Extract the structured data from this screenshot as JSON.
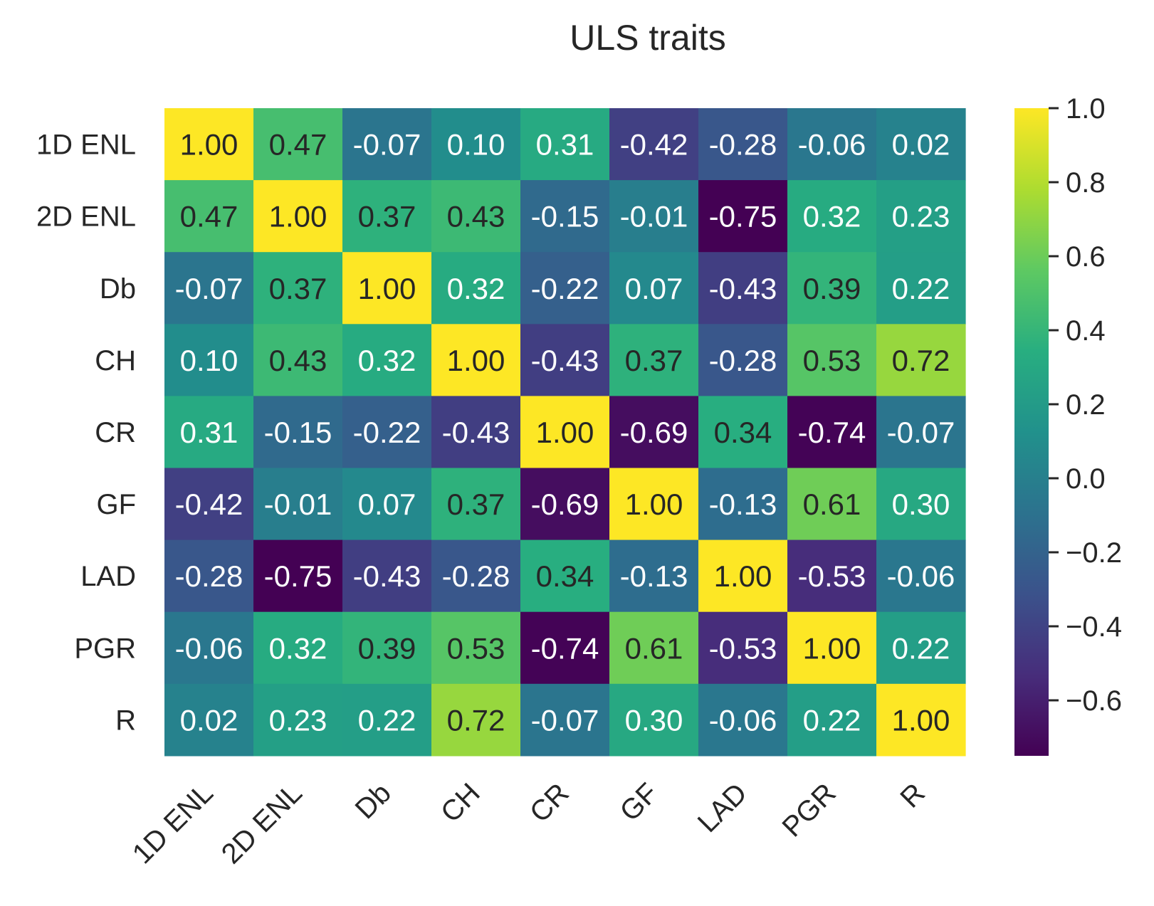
{
  "chart_data": {
    "type": "heatmap",
    "title": "ULS traits",
    "xlabel": "",
    "ylabel": "",
    "row_labels": [
      "1D ENL",
      "2D ENL",
      "Db",
      "CH",
      "CR",
      "GF",
      "LAD",
      "PGR",
      "R"
    ],
    "col_labels": [
      "1D ENL",
      "2D ENL",
      "Db",
      "CH",
      "CR",
      "GF",
      "LAD",
      "PGR",
      "R"
    ],
    "values": [
      [
        1.0,
        0.47,
        -0.07,
        0.1,
        0.31,
        -0.42,
        -0.28,
        -0.06,
        0.02
      ],
      [
        0.47,
        1.0,
        0.37,
        0.43,
        -0.15,
        -0.01,
        -0.75,
        0.32,
        0.23
      ],
      [
        -0.07,
        0.37,
        1.0,
        0.32,
        -0.22,
        0.07,
        -0.43,
        0.39,
        0.22
      ],
      [
        0.1,
        0.43,
        0.32,
        1.0,
        -0.43,
        0.37,
        -0.28,
        0.53,
        0.72
      ],
      [
        0.31,
        -0.15,
        -0.22,
        -0.43,
        1.0,
        -0.69,
        0.34,
        -0.74,
        -0.07
      ],
      [
        -0.42,
        -0.01,
        0.07,
        0.37,
        -0.69,
        1.0,
        -0.13,
        0.61,
        0.3
      ],
      [
        -0.28,
        -0.75,
        -0.43,
        -0.28,
        0.34,
        -0.13,
        1.0,
        -0.53,
        -0.06
      ],
      [
        -0.06,
        0.32,
        0.39,
        0.53,
        -0.74,
        0.61,
        -0.53,
        1.0,
        0.22
      ],
      [
        0.02,
        0.23,
        0.22,
        0.72,
        -0.07,
        0.3,
        -0.06,
        0.22,
        1.0
      ]
    ],
    "value_format": "2 decimals",
    "colormap": "viridis",
    "vmin": -0.75,
    "vmax": 1.0,
    "colorbar_ticks": [
      1.0,
      0.8,
      0.6,
      0.4,
      0.2,
      0.0,
      -0.2,
      -0.4,
      -0.6
    ],
    "colorbar_tick_labels": [
      "1.0",
      "0.8",
      "0.6",
      "0.4",
      "0.2",
      "0.0",
      "−0.2",
      "−0.4",
      "−0.6"
    ],
    "grid": false,
    "legend": "colorbar-right"
  },
  "colors": {
    "text_dark": "#262626",
    "annot_light": "#ffffff",
    "annot_dark": "#262626",
    "background": "#ffffff"
  }
}
